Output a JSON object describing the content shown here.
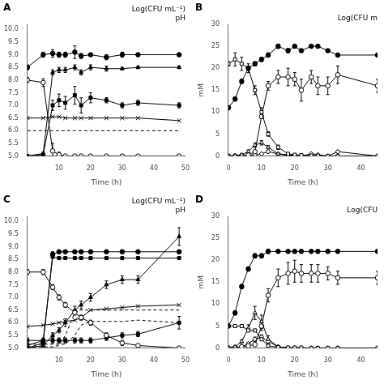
{
  "chart_data": [
    {
      "type": "line",
      "title": "A",
      "xlabel": "Time (h)",
      "annotation": "Log(CFU mL⁻¹)\npH",
      "grid": false,
      "x": [
        0,
        5,
        8,
        10,
        12,
        15,
        17,
        20,
        25,
        30,
        35,
        48
      ],
      "xlim": [
        0,
        50
      ],
      "xticks": [
        10,
        20,
        30,
        40,
        50
      ],
      "ylim": [
        5.0,
        10.2
      ],
      "yticks": [
        {
          "value": 5,
          "label": "5.0"
        },
        5.5,
        {
          "value": 6,
          "label": "6.0"
        },
        6.5,
        {
          "value": 7,
          "label": "7.0"
        },
        7.5,
        {
          "value": 8,
          "label": "8.0"
        },
        8.5,
        {
          "value": 9,
          "label": "9.0"
        },
        9.5,
        {
          "value": 10,
          "label": "10.0"
        }
      ],
      "series": [
        {
          "color": "#000000",
          "marker": "open_circle",
          "line_style": "solid",
          "values": [
            8.0,
            7.9,
            5.2,
            5.05,
            5.0,
            5.0,
            5.0,
            5.0,
            5.0,
            5.0,
            5.0,
            5.0
          ],
          "errors": [
            0.1,
            0.15,
            0.3,
            0.1,
            0.0,
            0.0,
            0.0,
            0.0,
            0.0,
            0.0,
            0.0,
            0.0
          ]
        },
        {
          "color": "#000000",
          "marker": "none",
          "line_style": "dashed",
          "values": [
            6.0,
            6.0,
            6.0,
            6.0,
            6.0,
            6.0,
            6.0,
            6.0,
            6.0,
            6.0,
            6.0,
            6.0
          ]
        },
        {
          "color": "#000000",
          "marker": "x",
          "line_style": "solid",
          "values": [
            6.5,
            6.5,
            6.55,
            6.55,
            6.5,
            6.5,
            6.5,
            6.5,
            6.5,
            6.5,
            6.5,
            6.4
          ]
        },
        {
          "color": "#000000",
          "marker": "square",
          "line_style": "solid",
          "values": [
            5.0,
            5.05,
            7.0,
            7.2,
            7.1,
            7.4,
            7.0,
            7.3,
            7.2,
            7.0,
            7.1,
            7.0
          ],
          "errors": [
            0.0,
            0.05,
            0.2,
            0.25,
            0.25,
            0.35,
            0.3,
            0.2,
            0.1,
            0.1,
            0.1,
            0.1
          ]
        },
        {
          "color": "#000000",
          "marker": "triangle",
          "line_style": "solid",
          "values": [
            5.0,
            5.1,
            8.3,
            8.4,
            8.4,
            8.5,
            8.3,
            8.5,
            8.45,
            8.45,
            8.5,
            8.5
          ],
          "errors": [
            0.0,
            0.05,
            0.1,
            0.1,
            0.1,
            0.1,
            0.1,
            0.1,
            0.1,
            0.05,
            0.05,
            0.05
          ]
        },
        {
          "color": "#000000",
          "marker": "circle",
          "line_style": "solid",
          "values": [
            8.5,
            9.0,
            9.05,
            9.0,
            9.0,
            9.1,
            8.95,
            9.0,
            8.9,
            9.0,
            9.0,
            9.0
          ],
          "errors": [
            0.1,
            0.1,
            0.15,
            0.1,
            0.1,
            0.25,
            0.1,
            0.05,
            0.1,
            0.1,
            0.05,
            0.05
          ]
        }
      ]
    },
    {
      "type": "line",
      "title": "B",
      "xlabel": "Time (h)",
      "ylabel": "mM",
      "annotation": "Log(CFU m",
      "grid": false,
      "x": [
        0,
        2,
        4,
        6,
        8,
        10,
        12,
        15,
        18,
        20,
        22,
        25,
        27,
        30,
        33,
        45
      ],
      "xlim": [
        0,
        45
      ],
      "xticks": [
        0,
        10,
        20,
        30,
        40
      ],
      "ylim": [
        0,
        30
      ],
      "yticks": [
        0,
        5,
        10,
        15,
        20,
        25,
        30
      ],
      "series": [
        {
          "color": "#000000",
          "marker": "circle",
          "line_style": "solid",
          "values": [
            11,
            13,
            17,
            20,
            21,
            22,
            23,
            25,
            24,
            25,
            24,
            25,
            25,
            24,
            23,
            23
          ],
          "errors": [
            0.5,
            0.5,
            0.5,
            0.5,
            0.5,
            0.5,
            0.5,
            0.5,
            0.5,
            0.3,
            0.3,
            0.3,
            0.2,
            0.2,
            0.2,
            0.2
          ]
        },
        {
          "color": "#000000",
          "marker": "open_square",
          "line_style": "solid",
          "values": [
            21,
            22,
            21,
            20,
            15,
            10,
            5,
            2,
            0.5,
            0.3,
            0.2,
            0.1,
            0.1,
            0.0,
            0.0,
            0.0
          ],
          "errors": [
            0.5,
            1.5,
            1.5,
            1.0,
            1.0,
            1.0,
            0.5,
            0.5,
            0.2,
            0.1,
            0.0,
            0.0,
            0.0,
            0.0,
            0.0,
            0.0
          ]
        },
        {
          "color": "#000000",
          "marker": "open_triangle",
          "line_style": "solid",
          "values": [
            0.0,
            0.1,
            0.3,
            1.0,
            2.5,
            3.0,
            2.0,
            0.5,
            0.1,
            0.0,
            0.0,
            0.0,
            0.0,
            0.0,
            0.0,
            0.0
          ],
          "errors": [
            0.0,
            0.05,
            0.2,
            0.4,
            0.5,
            0.5,
            0.4,
            0.2,
            0.1,
            0.0,
            0.0,
            0.0,
            0.0,
            0.0,
            0.0,
            0.0
          ]
        },
        {
          "color": "#000000",
          "marker": "open_circle",
          "line_style": "solid",
          "values": [
            0.0,
            0.0,
            0.1,
            0.2,
            1.0,
            9.0,
            16.0,
            18.0,
            18.0,
            17.5,
            15.0,
            18.0,
            16.0,
            16.0,
            18.5,
            16.0
          ],
          "errors": [
            0.0,
            0.0,
            0.1,
            0.1,
            0.3,
            0.5,
            1.0,
            1.5,
            2.0,
            1.5,
            2.5,
            1.5,
            2.0,
            2.0,
            2.0,
            1.5
          ]
        },
        {
          "color": "#000000",
          "marker": "open_diamond",
          "line_style": "solid",
          "values": [
            0.0,
            0.0,
            0.0,
            0.1,
            0.3,
            0.5,
            1.0,
            0.5,
            0.3,
            0.1,
            0.0,
            0.5,
            0.3,
            0.0,
            1.0,
            0.0
          ],
          "errors": [
            0.0,
            0.0,
            0.0,
            0.05,
            0.1,
            0.2,
            0.3,
            0.2,
            0.1,
            0.05,
            0.0,
            0.2,
            0.1,
            0.0,
            0.3,
            0.0
          ]
        }
      ]
    },
    {
      "type": "line",
      "title": "C",
      "xlabel": "Time (h)",
      "annotation": "Log(CFU mL⁻¹)\npH",
      "grid": false,
      "x": [
        0,
        5,
        8,
        10,
        12,
        15,
        17,
        20,
        25,
        30,
        35,
        48
      ],
      "xlim": [
        0,
        50
      ],
      "xticks": [
        10,
        20,
        30,
        40,
        50
      ],
      "ylim": [
        5.0,
        10.2
      ],
      "yticks": [
        {
          "value": 5,
          "label": "5.0"
        },
        5.5,
        {
          "value": 6,
          "label": "6.0"
        },
        6.5,
        {
          "value": 7,
          "label": "7.0"
        },
        7.5,
        {
          "value": 8,
          "label": "8.0"
        },
        8.5,
        {
          "value": 9,
          "label": "9.0"
        },
        9.5,
        {
          "value": 10,
          "label": "10.0"
        }
      ],
      "series": [
        {
          "color": "#000000",
          "marker": "open_circle",
          "line_style": "solid",
          "values": [
            8.0,
            8.0,
            7.4,
            7.0,
            6.7,
            6.4,
            6.2,
            6.0,
            5.5,
            5.2,
            5.1,
            5.0
          ],
          "errors": [
            0.1,
            0.1,
            0.1,
            0.1,
            0.1,
            0.1,
            0.1,
            0.1,
            0.1,
            0.1,
            0.05,
            0.0
          ]
        },
        {
          "color": "#000000",
          "marker": "none",
          "line_style": "dashed",
          "values": [
            5.05,
            5.05,
            5.05,
            5.1,
            5.5,
            6.4,
            6.5,
            6.5,
            6.5,
            6.5,
            6.5,
            6.5
          ]
        },
        {
          "color": "#000000",
          "marker": "none",
          "line_style": "dashed",
          "values": [
            5.15,
            5.15,
            5.15,
            5.15,
            5.15,
            5.5,
            5.9,
            6.05,
            6.05,
            6.05,
            6.1,
            6.0
          ]
        },
        {
          "color": "#000000",
          "marker": "x",
          "line_style": "solid",
          "values": [
            5.85,
            5.9,
            5.95,
            6.0,
            6.05,
            6.1,
            6.2,
            6.5,
            6.55,
            6.6,
            6.65,
            6.7
          ]
        },
        {
          "color": "#000000",
          "marker": "square",
          "line_style": "solid",
          "values": [
            5.3,
            5.3,
            5.3,
            5.3,
            5.3,
            5.3,
            5.3,
            5.3,
            5.4,
            5.5,
            5.55,
            6.0
          ],
          "errors": [
            0.1,
            0.1,
            0.1,
            0.1,
            0.1,
            0.1,
            0.1,
            0.1,
            0.1,
            0.1,
            0.1,
            0.25
          ]
        },
        {
          "color": "#000000",
          "marker": "square",
          "line_style": "solid",
          "values": [
            5.1,
            5.3,
            8.6,
            8.55,
            8.55,
            8.55,
            8.55,
            8.55,
            8.55,
            8.55,
            8.55,
            8.55
          ]
        },
        {
          "color": "#000000",
          "marker": "triangle",
          "line_style": "solid",
          "values": [
            5.0,
            5.1,
            5.5,
            5.7,
            6.0,
            6.5,
            6.7,
            7.0,
            7.5,
            7.7,
            7.7,
            9.4
          ],
          "errors": [
            0.0,
            0.05,
            0.1,
            0.1,
            0.15,
            0.15,
            0.15,
            0.15,
            0.15,
            0.15,
            0.15,
            0.35
          ]
        },
        {
          "color": "#000000",
          "marker": "circle",
          "line_style": "solid",
          "values": [
            5.0,
            5.2,
            8.7,
            8.8,
            8.8,
            8.8,
            8.8,
            8.8,
            8.8,
            8.8,
            8.8,
            8.8
          ],
          "errors": [
            0.0,
            0.05,
            0.1,
            0.05,
            0.05,
            0.05,
            0.05,
            0.05,
            0.05,
            0.05,
            0.05,
            0.05
          ]
        }
      ]
    },
    {
      "type": "line",
      "title": "D",
      "xlabel": "Time (h)",
      "ylabel": "mM",
      "annotation": "Log(CFU",
      "grid": false,
      "x": [
        0,
        2,
        4,
        6,
        8,
        10,
        12,
        15,
        18,
        20,
        22,
        25,
        27,
        30,
        33,
        45
      ],
      "xlim": [
        0,
        45
      ],
      "xticks": [
        0,
        10,
        20,
        30,
        40
      ],
      "ylim": [
        0,
        30
      ],
      "yticks": [
        0,
        5,
        10,
        15,
        20,
        25,
        30
      ],
      "series": [
        {
          "color": "#000000",
          "marker": "circle",
          "line_style": "solid",
          "values": [
            5,
            8,
            14,
            18,
            21,
            21,
            22,
            22,
            22,
            22,
            22,
            22,
            22,
            22,
            22,
            22
          ],
          "errors": [
            0,
            0.5,
            0.5,
            0.5,
            0.5,
            0.5,
            0.5,
            0.3,
            0.3,
            0.3,
            0.2,
            0.2,
            0.2,
            0.2,
            0.2,
            0.2
          ]
        },
        {
          "color": "#000000",
          "marker": "open_square",
          "line_style": "solid",
          "values": [
            5,
            5,
            5,
            4,
            4,
            2,
            0.5,
            0.2,
            0.1,
            0.1,
            0.1,
            0.0,
            0.0,
            0.0,
            0.0,
            0.0
          ],
          "errors": [
            0.3,
            0.3,
            0.3,
            0.3,
            0.3,
            0.3,
            0.2,
            0.1,
            0.05,
            0.0,
            0.0,
            0.0,
            0.0,
            0.0,
            0.0,
            0.0
          ]
        },
        {
          "color": "#000000",
          "marker": "open_triangle",
          "line_style": "solid",
          "values": [
            0.0,
            0.3,
            1.5,
            4.5,
            8.0,
            6.0,
            2.0,
            0.3,
            0.0,
            0.0,
            0.0,
            0.0,
            0.0,
            0.0,
            0.0,
            0.0
          ],
          "errors": [
            0.0,
            0.15,
            0.4,
            0.8,
            1.5,
            1.5,
            0.8,
            0.2,
            0.0,
            0.0,
            0.0,
            0.0,
            0.0,
            0.0,
            0.0,
            0.0
          ]
        },
        {
          "color": "#000000",
          "marker": "open_circle",
          "line_style": "solid",
          "values": [
            0.0,
            0.1,
            0.3,
            0.5,
            0.8,
            5.0,
            12.0,
            16.0,
            17.0,
            17.5,
            17.0,
            17.0,
            17.0,
            17.0,
            16.0,
            16.0
          ],
          "errors": [
            0.0,
            0.05,
            0.1,
            0.1,
            0.2,
            1.0,
            1.5,
            2.0,
            2.5,
            2.5,
            2.0,
            2.0,
            2.0,
            1.5,
            1.5,
            1.5
          ]
        },
        {
          "color": "#000000",
          "marker": "open_diamond",
          "line_style": "solid",
          "values": [
            0.0,
            0.1,
            0.3,
            1.0,
            2.0,
            2.5,
            1.5,
            0.3,
            0.0,
            0.0,
            0.0,
            0.0,
            0.0,
            0.0,
            0.0,
            0.0
          ],
          "errors": [
            0.0,
            0.05,
            0.1,
            0.2,
            0.5,
            0.5,
            0.5,
            0.15,
            0.0,
            0.0,
            0.0,
            0.0,
            0.0,
            0.0,
            0.0,
            0.0
          ]
        }
      ]
    }
  ]
}
